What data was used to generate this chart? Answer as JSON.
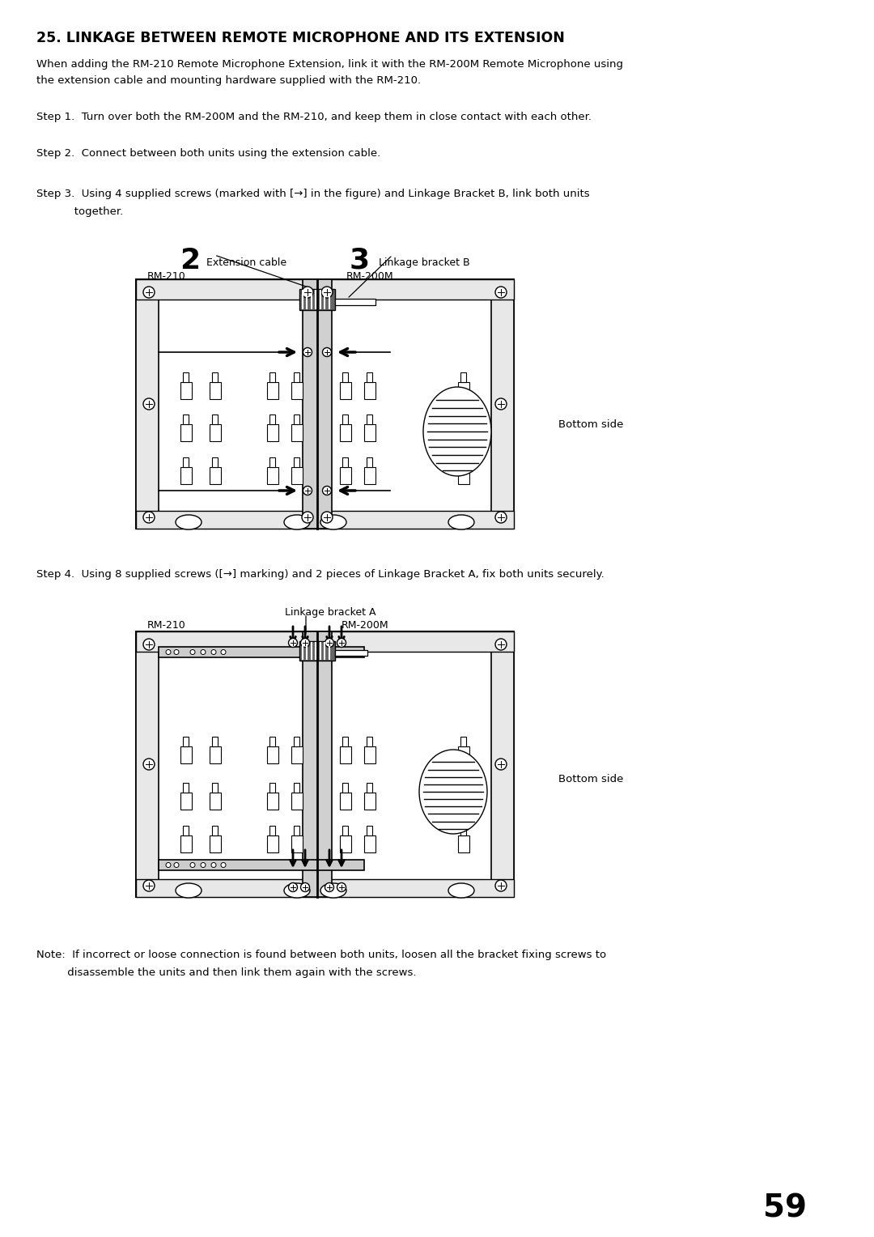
{
  "title": "25. LINKAGE BETWEEN REMOTE MICROPHONE AND ITS EXTENSION",
  "intro_line1": "When adding the RM-210 Remote Microphone Extension, link it with the RM-200M Remote Microphone using",
  "intro_line2": "the extension cable and mounting hardware supplied with the RM-210.",
  "step1": "Step 1.  Turn over both the RM-200M and the RM-210, and keep them in close contact with each other.",
  "step2": "Step 2.  Connect between both units using the extension cable.",
  "step3_line1": "Step 3.  Using 4 supplied screws (marked with [→] in the figure) and Linkage Bracket B, link both units",
  "step3_line2": "           together.",
  "step4": "Step 4.  Using 8 supplied screws ([→] marking) and 2 pieces of Linkage Bracket A, fix both units securely.",
  "note_line1": "Note:  If incorrect or loose connection is found between both units, loosen all the bracket fixing screws to",
  "note_line2": "         disassemble the units and then link them again with the screws.",
  "page_number": "59",
  "bg_color": "#ffffff"
}
